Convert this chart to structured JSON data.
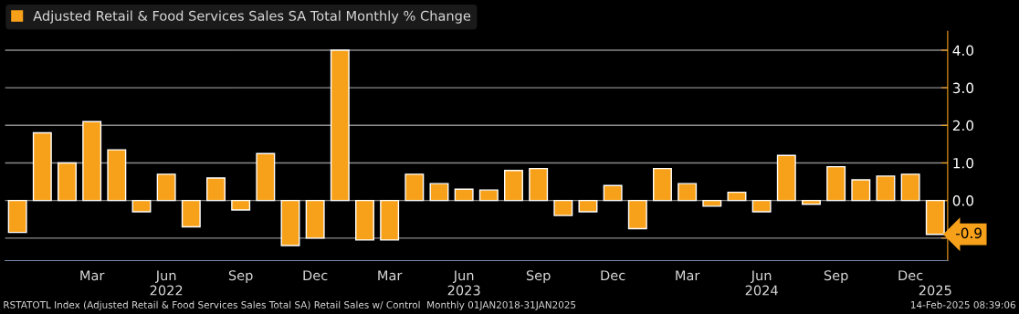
{
  "chart_data": {
    "type": "bar",
    "categories": [
      null,
      null,
      null,
      "Mar",
      null,
      null,
      "Jun\n2022",
      null,
      null,
      "Sep",
      null,
      null,
      "Dec",
      null,
      null,
      "Mar",
      null,
      null,
      "Jun\n2023",
      null,
      null,
      "Sep",
      null,
      null,
      "Dec",
      null,
      null,
      "Mar",
      null,
      null,
      "Jun\n2024",
      null,
      null,
      "Sep",
      null,
      null,
      "Dec",
      "\n2025"
    ],
    "series": [
      {
        "name": "Adjusted Retail & Food Services Sales SA Total Monthly % Change",
        "color": "#f7a11a",
        "values": [
          -0.85,
          1.8,
          1.0,
          2.1,
          1.35,
          -0.3,
          0.7,
          -0.7,
          0.6,
          -0.25,
          1.25,
          -1.2,
          -1.0,
          4.0,
          -1.05,
          -1.05,
          0.7,
          0.45,
          0.3,
          0.28,
          0.8,
          0.85,
          -0.4,
          -0.3,
          0.4,
          -0.75,
          0.85,
          0.45,
          -0.15,
          0.22,
          -0.3,
          1.2,
          -0.1,
          0.9,
          0.55,
          0.65,
          0.7,
          -0.9
        ]
      }
    ],
    "ylim": [
      -1.6,
      4.5
    ],
    "yticks": [
      {
        "value": -1,
        "label": null
      },
      {
        "value": 0,
        "label": "0.0"
      },
      {
        "value": 1,
        "label": "1.0"
      },
      {
        "value": 2,
        "label": "2.0"
      },
      {
        "value": 3,
        "label": "3.0"
      },
      {
        "value": 4,
        "label": "4.0"
      }
    ],
    "grid": "y",
    "legend": "top left",
    "annotations": [
      {
        "text": "-0.9",
        "x": "\n2025",
        "y": -0.9
      },
      "RSTATOTL Index (Adjusted Retail & Food Services Sales Total SA) Retail Sales w/ Control  Monthly 01JAN2018-31JAN2025",
      "14-Feb-2025 08:39:06"
    ]
  }
}
